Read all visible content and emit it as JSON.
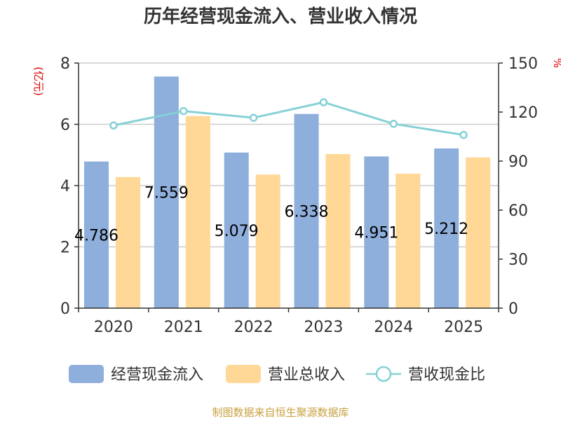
{
  "chart_data": {
    "type": "bar",
    "title": "历年经营现金流入、营业收入情况",
    "categories": [
      "2020",
      "2021",
      "2022",
      "2023",
      "2024",
      "2025"
    ],
    "y_left_unit": "(亿元)",
    "y_right_unit": "%",
    "ylim_left": [
      0,
      8
    ],
    "yticks_left": [
      "0",
      "2",
      "4",
      "6",
      "8"
    ],
    "ylim_right": [
      0,
      150
    ],
    "yticks_right": [
      "0",
      "30",
      "60",
      "90",
      "120",
      "150"
    ],
    "grid": true,
    "legend_position": "bottom",
    "series": [
      {
        "name": "经营现金流入",
        "kind": "bar",
        "axis": "left",
        "color": "#8eaedb",
        "values": [
          4.786,
          7.559,
          5.079,
          6.338,
          4.951,
          5.212
        ],
        "labels": [
          "4.786",
          "7.559",
          "5.079",
          "6.338",
          "4.951",
          "5.212"
        ]
      },
      {
        "name": "营业总收入",
        "kind": "bar",
        "axis": "left",
        "color": "#ffd898",
        "values": [
          4.28,
          6.27,
          4.36,
          5.03,
          4.39,
          4.92
        ]
      },
      {
        "name": "营收现金比",
        "kind": "line",
        "axis": "right",
        "color": "#86d1d6",
        "values": [
          111.8,
          120.6,
          116.5,
          126.0,
          112.8,
          106.0
        ]
      }
    ],
    "source": "制图数据来自恒生聚源数据库"
  },
  "colors": {
    "axis": "#333333",
    "grid": "#cccccc",
    "unit_label": "#e00000",
    "source_text": "#c8a040"
  }
}
